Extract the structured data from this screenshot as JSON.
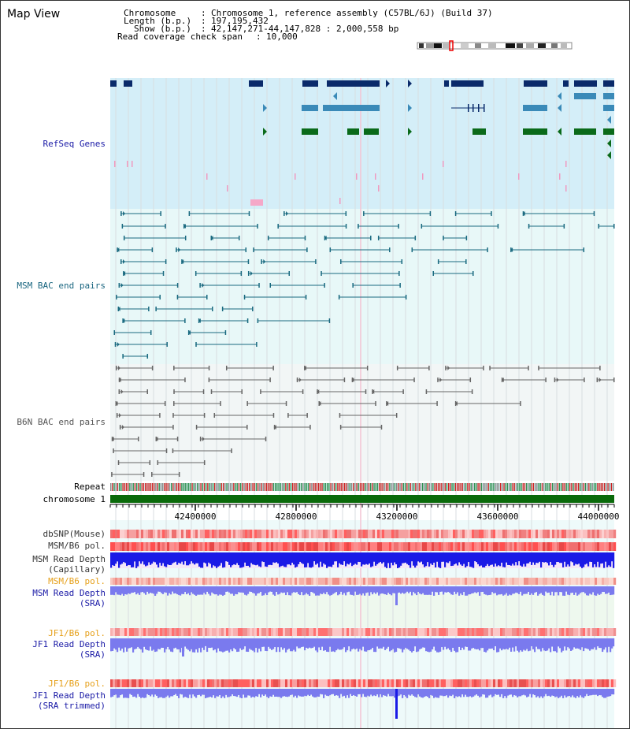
{
  "header": {
    "title": "Map View",
    "chromosome_label": "Chromosome",
    "chromosome_value": "Chromosome 1, reference assembly (C57BL/6J) (Build 37)",
    "length_label": "Length (b.p.)",
    "length_value": "197,195,432",
    "show_label": "Show (b.p.)",
    "show_value": "42,147,271-44,147,828 : 2,000,558 bp",
    "coverage_label": "Read coverage check span",
    "coverage_value": "10,000"
  },
  "tracks": {
    "refseq": "RefSeq Genes",
    "msm_bac": "MSM BAC end pairs",
    "b6n_bac": "B6N BAC end pairs",
    "repeat": "Repeat",
    "chromosome": "chromosome 1",
    "dbsnp": "dbSNP(Mouse)",
    "msm_b6_pol": "MSM/B6 pol.",
    "msm_depth_cap_1": "MSM Read Depth",
    "msm_depth_cap_2": "(Capillary)",
    "msm_b6_pol_2": "MSM/B6 pol.",
    "msm_depth_sra_1": "MSM Read Depth",
    "msm_depth_sra_2": "(SRA)",
    "jf1_b6_pol": "JF1/B6 pol.",
    "jf1_depth_sra_1": "JF1 Read Depth",
    "jf1_depth_sra_2": "(SRA)",
    "jf1_b6_pol_2": "JF1/B6 pol.",
    "jf1_depth_trim_1": "JF1 Read Depth",
    "jf1_depth_trim_2": "(SRA trimmed)"
  },
  "axis": {
    "ticks": [
      "42400000",
      "42800000",
      "43200000",
      "43600000",
      "44000000"
    ]
  },
  "colors": {
    "refseq_bg": "#d4eef8",
    "bac_bg": "#e8f8f8",
    "gene_dark": "#0a2a6a",
    "gene_mid": "#3a8ab8",
    "gene_green": "#0a6a1a",
    "msm_bac": "#1a6a80",
    "b6n_bac": "#666666",
    "chromosome": "#0a6a0a",
    "depth_blue": "#1a1ae6",
    "depth_light": "#7a7aee"
  }
}
